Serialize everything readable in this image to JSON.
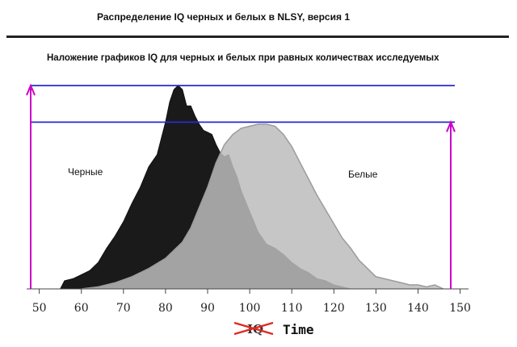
{
  "header": {
    "title": "Распределение IQ черных и белых в NLSY, версия 1",
    "subtitle": "Наложение графиков IQ для черных и белых при равных количествах исследуемых"
  },
  "chart_data": {
    "type": "area",
    "x_ticks": [
      50,
      60,
      70,
      80,
      90,
      100,
      110,
      120,
      130,
      140,
      150
    ],
    "xlim": [
      47,
      152
    ],
    "ylim": [
      0,
      1
    ],
    "xlabel_struck": "IQ",
    "xlabel_replacement": "Time",
    "series": [
      {
        "name": "Черные",
        "color": "#1a1a1a",
        "x": [
          55,
          56,
          58,
          60,
          62,
          64,
          66,
          68,
          70,
          72,
          74,
          76,
          78,
          79,
          80,
          81,
          82,
          83,
          84,
          85,
          86,
          87,
          88,
          89,
          90,
          91,
          92,
          93,
          94,
          95,
          96,
          97,
          98,
          100,
          102,
          104,
          106,
          108,
          110,
          112,
          114,
          116,
          118,
          120,
          122,
          124
        ],
        "values": [
          0.0,
          0.04,
          0.05,
          0.07,
          0.09,
          0.13,
          0.2,
          0.26,
          0.33,
          0.42,
          0.5,
          0.6,
          0.66,
          0.74,
          0.82,
          0.92,
          0.98,
          1.0,
          0.98,
          0.9,
          0.9,
          0.85,
          0.81,
          0.78,
          0.77,
          0.76,
          0.71,
          0.67,
          0.65,
          0.66,
          0.6,
          0.55,
          0.48,
          0.38,
          0.28,
          0.22,
          0.2,
          0.17,
          0.13,
          0.1,
          0.08,
          0.05,
          0.04,
          0.02,
          0.01,
          0.0
        ]
      },
      {
        "name": "Белые",
        "color": "#bcbcbc",
        "x": [
          60,
          64,
          68,
          72,
          76,
          80,
          84,
          86,
          88,
          90,
          92,
          94,
          96,
          98,
          100,
          102,
          104,
          106,
          108,
          110,
          112,
          114,
          116,
          118,
          120,
          122,
          124,
          126,
          128,
          130,
          132,
          134,
          136,
          138,
          140,
          142,
          144,
          146
        ],
        "values": [
          0.0,
          0.01,
          0.03,
          0.06,
          0.1,
          0.15,
          0.23,
          0.3,
          0.4,
          0.5,
          0.62,
          0.71,
          0.76,
          0.79,
          0.8,
          0.81,
          0.81,
          0.8,
          0.76,
          0.7,
          0.62,
          0.54,
          0.46,
          0.39,
          0.32,
          0.25,
          0.2,
          0.14,
          0.1,
          0.06,
          0.05,
          0.04,
          0.03,
          0.02,
          0.02,
          0.01,
          0.02,
          0.0
        ]
      }
    ],
    "reference_lines": {
      "upper": 1.0,
      "lower": 0.82,
      "color": "#2a2ad0"
    },
    "arrows": {
      "color": "#cc00cc",
      "left_x": 38,
      "right_x": 558
    }
  }
}
